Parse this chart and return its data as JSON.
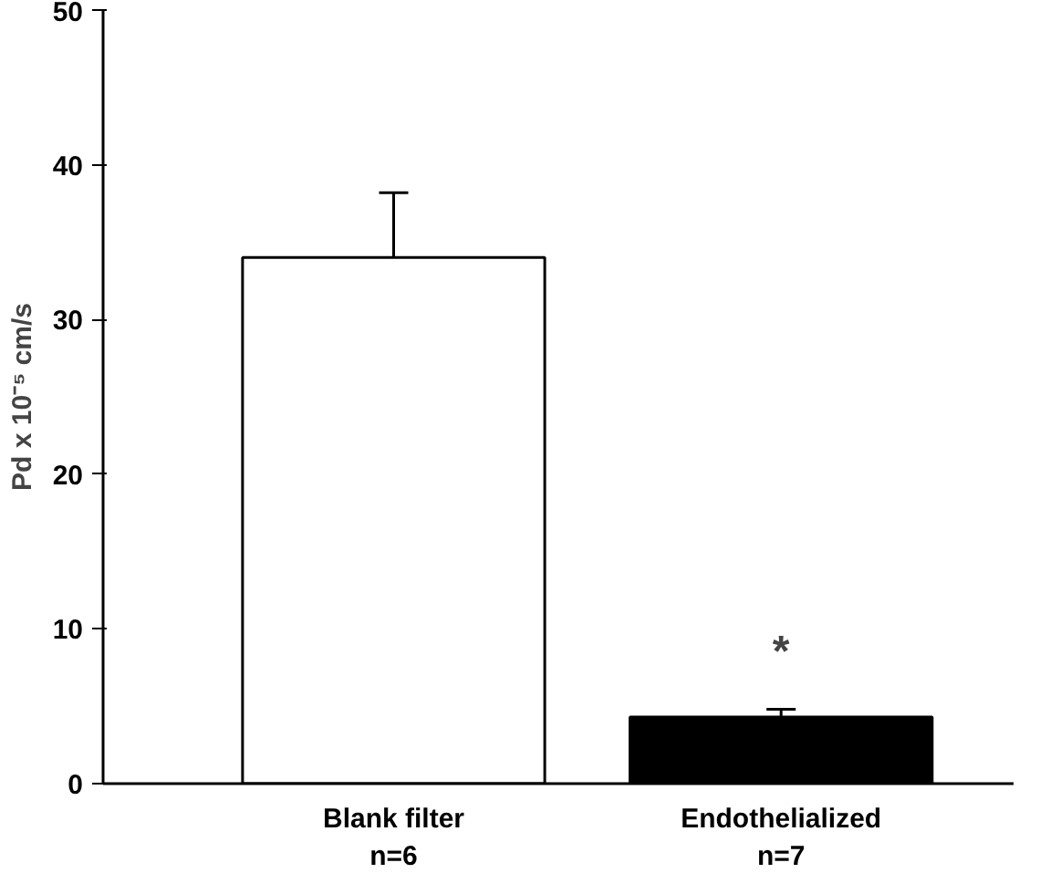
{
  "chart_data": {
    "type": "bar",
    "ylabel": "Pd x 10⁻⁵ cm/s",
    "categories": [
      "Blank filter\nn=6",
      "Endothelialized\nn=7"
    ],
    "values": [
      34,
      4.3
    ],
    "errors": [
      4.2,
      0.5
    ],
    "colors": [
      "#ffffff",
      "#000000"
    ],
    "ylim": [
      0,
      50
    ],
    "yticks": [
      0,
      10,
      20,
      30,
      40,
      50
    ],
    "annotations": [
      "*"
    ]
  }
}
